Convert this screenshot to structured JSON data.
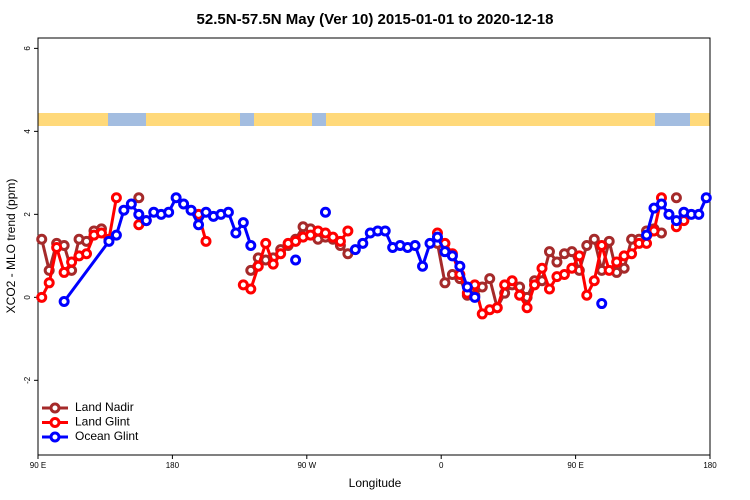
{
  "chart_data": {
    "type": "line",
    "title": "52.5N-57.5N May (Ver 10)   2015-01-01 to 2020-12-18",
    "x_label": "Longitude",
    "y_label": "XCO2 - MLO trend (ppm)",
    "xlim": [
      90,
      540
    ],
    "ylim": [
      -3.8,
      6.25
    ],
    "xticks": [
      {
        "value": 90,
        "label": "90 E"
      },
      180,
      {
        "value": 270,
        "label": "90 W"
      },
      {
        "value": 360,
        "label": "0"
      },
      {
        "value": 450,
        "label": "90 E"
      },
      {
        "value": 540,
        "label": "180"
      }
    ],
    "yticks": [
      -2,
      0,
      2,
      4,
      6
    ],
    "legend": "bottom-left",
    "series": [
      {
        "name": "Land Nadir",
        "color": "#a52a2a",
        "x": [
          92.5,
          97.5,
          102.5,
          107.5,
          112.5,
          117.5,
          122.5,
          127.5,
          132.5,
          null,
          157.5,
          null,
          232.5,
          237.5,
          242.5,
          247.5,
          252.5,
          257.5,
          262.5,
          267.5,
          272.5,
          277.5,
          282.5,
          287.5,
          292.5,
          297.5,
          null,
          357.5,
          362.5,
          367.5,
          372.5,
          377.5,
          382.5,
          387.5,
          392.5,
          397.5,
          402.5,
          407.5,
          412.5,
          417.5,
          422.5,
          427.5,
          432.5,
          437.5,
          442.5,
          447.5,
          452.5,
          457.5,
          462.5,
          467.5,
          472.5,
          477.5,
          482.5,
          487.5,
          492.5,
          497.5,
          502.5,
          507.5,
          null,
          517.5
        ],
        "values": [
          1.4,
          0.65,
          1.3,
          1.25,
          0.65,
          1.4,
          1.35,
          1.6,
          1.65,
          null,
          2.4,
          null,
          0.65,
          0.95,
          0.9,
          0.95,
          1.15,
          1.25,
          1.4,
          1.7,
          1.65,
          1.4,
          1.45,
          1.4,
          1.25,
          1.05,
          null,
          1.3,
          0.35,
          0.55,
          0.45,
          0.05,
          0.05,
          0.25,
          0.45,
          -0.25,
          0.1,
          0.3,
          0.25,
          0.0,
          0.4,
          0.4,
          1.1,
          0.85,
          1.05,
          1.1,
          0.65,
          1.25,
          1.4,
          0.65,
          1.35,
          0.6,
          0.7,
          1.4,
          1.4,
          1.6,
          1.65,
          1.55,
          null,
          2.4
        ]
      },
      {
        "name": "Land Glint",
        "color": "#ff0000",
        "x": [
          92.5,
          97.5,
          102.5,
          107.5,
          112.5,
          117.5,
          122.5,
          127.5,
          132.5,
          137.5,
          142.5,
          null,
          157.5,
          162.5,
          null,
          197.5,
          202.5,
          null,
          227.5,
          232.5,
          237.5,
          242.5,
          247.5,
          252.5,
          257.5,
          262.5,
          267.5,
          272.5,
          277.5,
          282.5,
          287.5,
          292.5,
          297.5,
          null,
          357.5,
          362.5,
          367.5,
          372.5,
          377.5,
          382.5,
          387.5,
          392.5,
          397.5,
          402.5,
          407.5,
          412.5,
          417.5,
          422.5,
          427.5,
          432.5,
          437.5,
          442.5,
          447.5,
          452.5,
          457.5,
          462.5,
          467.5,
          472.5,
          477.5,
          482.5,
          487.5,
          492.5,
          497.5,
          502.5,
          507.5,
          null,
          517.5,
          522.5
        ],
        "values": [
          0.0,
          0.35,
          1.2,
          0.6,
          0.85,
          1.0,
          1.05,
          1.5,
          1.55,
          1.4,
          2.4,
          null,
          1.75,
          1.85,
          null,
          2.0,
          1.35,
          null,
          0.3,
          0.2,
          0.75,
          1.3,
          0.8,
          1.05,
          1.3,
          1.35,
          1.45,
          1.5,
          1.6,
          1.55,
          1.45,
          1.35,
          1.6,
          null,
          1.55,
          1.3,
          1.05,
          0.55,
          0.1,
          0.3,
          -0.4,
          -0.3,
          -0.25,
          0.3,
          0.4,
          0.05,
          -0.25,
          0.3,
          0.7,
          0.2,
          0.5,
          0.55,
          0.7,
          1.0,
          0.05,
          0.4,
          1.25,
          0.65,
          0.85,
          1.0,
          1.05,
          1.3,
          1.3,
          1.6,
          2.4,
          null,
          1.7,
          1.85
        ]
      },
      {
        "name": "Ocean Glint",
        "color": "#0000ff",
        "x": [
          107.5,
          137.5,
          142.5,
          147.5,
          152.5,
          157.5,
          162.5,
          167.5,
          172.5,
          177.5,
          182.5,
          187.5,
          192.5,
          197.5,
          202.5,
          207.5,
          212.5,
          217.5,
          222.5,
          227.5,
          232.5,
          null,
          262.5,
          null,
          282.5,
          null,
          302.5,
          307.5,
          312.5,
          317.5,
          322.5,
          327.5,
          332.5,
          337.5,
          342.5,
          347.5,
          352.5,
          357.5,
          362.5,
          367.5,
          372.5,
          377.5,
          382.5,
          null,
          467.5,
          null,
          497.5,
          502.5,
          507.5,
          512.5,
          517.5,
          522.5,
          527.5,
          532.5,
          537.5
        ],
        "values": [
          -0.1,
          1.35,
          1.5,
          2.1,
          2.25,
          2.0,
          1.85,
          2.05,
          2.0,
          2.05,
          2.4,
          2.25,
          2.1,
          1.75,
          2.05,
          1.95,
          2.0,
          2.05,
          1.55,
          1.8,
          1.25,
          null,
          0.9,
          null,
          2.05,
          null,
          1.15,
          1.3,
          1.55,
          1.6,
          1.6,
          1.2,
          1.25,
          1.2,
          1.25,
          0.75,
          1.3,
          1.45,
          1.1,
          1.0,
          0.75,
          0.25,
          0.0,
          null,
          -0.15,
          null,
          1.5,
          2.15,
          2.25,
          2.0,
          1.85,
          2.05,
          2.0,
          2.0,
          2.4
        ]
      }
    ]
  }
}
